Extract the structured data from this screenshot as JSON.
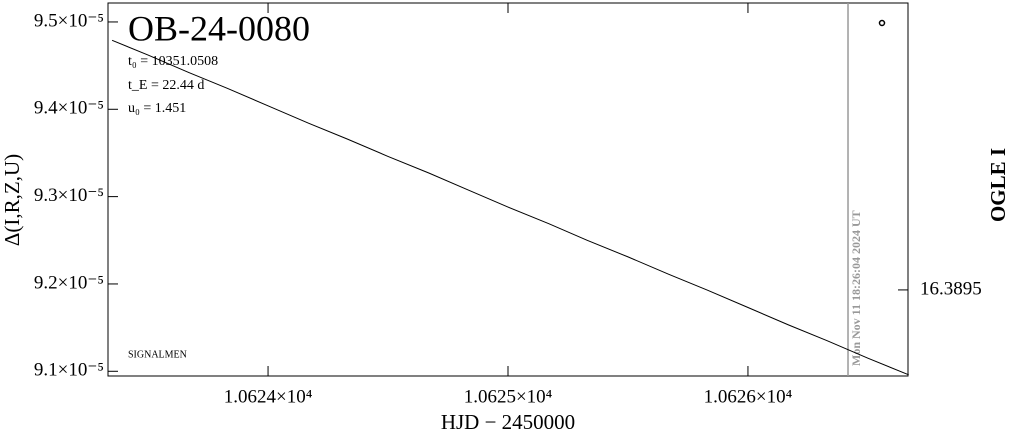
{
  "chart_data": {
    "type": "line",
    "title": "OB-24-0080",
    "params": [
      "t₀ = 10351.0508",
      "t_E = 22.44 d",
      "u₀ = 1.451"
    ],
    "source_label": "SIGNALMEN",
    "x_label": "HJD − 2450000",
    "y_label": "Δ(I,R,Z,U)",
    "y2_label": "OGLE I",
    "annotation": {
      "x": 10626.417,
      "label": "Mon Nov 11 18:26:04 2024 UT",
      "color": "#999999"
    },
    "x": [
      10623.35,
      10623.5,
      10623.67,
      10623.83,
      10624.0,
      10624.17,
      10624.33,
      10624.5,
      10624.67,
      10624.83,
      10625.0,
      10625.17,
      10625.33,
      10625.5,
      10625.67,
      10625.83,
      10626.0,
      10626.17,
      10626.33,
      10626.5,
      10626.67
    ],
    "series": [
      {
        "color": "#000000",
        "values": [
          9.479e-05,
          9.462e-05,
          9.442e-05,
          9.424e-05,
          9.404e-05,
          9.384e-05,
          9.366e-05,
          9.346e-05,
          9.327e-05,
          9.308e-05,
          9.288e-05,
          9.269e-05,
          9.25e-05,
          9.231e-05,
          9.211e-05,
          9.193e-05,
          9.173e-05,
          9.153e-05,
          9.135e-05,
          9.115e-05,
          9.096e-05
        ]
      }
    ],
    "xlim": [
      10623.333,
      10626.667
    ],
    "xticks": [
      {
        "value": 10624,
        "label": "1.0624×10⁴"
      },
      {
        "value": 10625,
        "label": "1.0625×10⁴"
      },
      {
        "value": 10626,
        "label": "1.0626×10⁴"
      }
    ],
    "ylim": [
      9.0946e-05,
      9.5217e-05
    ],
    "yticks": [
      {
        "value": 9.1e-05,
        "label": "9.1×10⁻⁵"
      },
      {
        "value": 9.2e-05,
        "label": "9.2×10⁻⁵"
      },
      {
        "value": 9.3e-05,
        "label": "9.3×10⁻⁵"
      },
      {
        "value": 9.4e-05,
        "label": "9.4×10⁻⁵"
      },
      {
        "value": 9.5e-05,
        "label": "9.5×10⁻⁵"
      }
    ],
    "y2lim": [
      16.3898,
      16.3885
    ],
    "y2ticks": [
      {
        "value": 16.3895,
        "label": "16.3895"
      }
    ]
  }
}
